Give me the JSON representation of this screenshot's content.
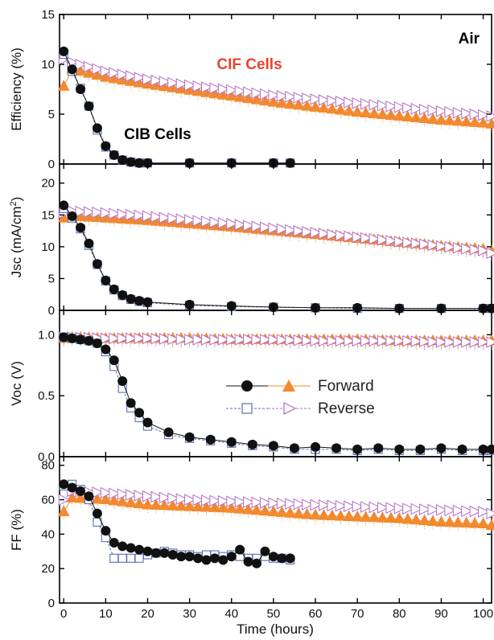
{
  "chart_data": [
    {
      "type": "scatter",
      "id": "eff",
      "ylabel": "Efficiency (%)",
      "ylim": [
        0,
        15
      ],
      "yticks": [
        0,
        5,
        10,
        15
      ],
      "annotations": [
        {
          "text": "Air",
          "color": "#000000"
        },
        {
          "text": "CIF Cells",
          "color": "#e8432e"
        },
        {
          "text": "CIB Cells",
          "color": "#000000"
        }
      ],
      "series": [
        {
          "key": "cib_forward",
          "x": [
            0,
            2,
            4,
            6,
            8,
            10,
            12,
            14,
            16,
            18,
            20,
            30,
            40,
            50,
            54
          ],
          "y": [
            11.3,
            9.5,
            7.5,
            5.8,
            3.6,
            1.8,
            0.9,
            0.4,
            0.2,
            0.1,
            0.1,
            0.1,
            0.1,
            0.1,
            0.1
          ]
        },
        {
          "key": "cib_reverse",
          "x": [
            0,
            2,
            4,
            6,
            8,
            10,
            12,
            14,
            16,
            18,
            20,
            30,
            40,
            50,
            54
          ],
          "y": [
            11.0,
            9.3,
            7.6,
            5.8,
            3.4,
            1.7,
            0.9,
            0.4,
            0.2,
            0.1,
            0.1,
            0.1,
            0.1,
            0.1,
            0.1
          ]
        },
        {
          "key": "cif_forward",
          "x": [
            0,
            2,
            10,
            20,
            30,
            40,
            50,
            60,
            70,
            80,
            90,
            100,
            102
          ],
          "y": [
            7.8,
            9.5,
            8.7,
            8.0,
            7.4,
            6.8,
            6.2,
            5.7,
            5.2,
            4.8,
            4.4,
            4.1,
            4.0
          ]
        },
        {
          "key": "cif_reverse",
          "x": [
            0,
            2,
            10,
            20,
            30,
            40,
            50,
            60,
            70,
            80,
            90,
            100,
            102
          ],
          "y": [
            10.5,
            10.2,
            9.3,
            8.5,
            7.9,
            7.4,
            6.9,
            6.5,
            6.1,
            5.7,
            5.3,
            4.9,
            4.8
          ]
        }
      ]
    },
    {
      "type": "scatter",
      "id": "jsc",
      "ylabel": "Jsc (mA/cm2)",
      "ylim": [
        0,
        23
      ],
      "yticks": [
        0,
        5,
        10,
        15,
        20
      ],
      "series": [
        {
          "key": "cib_forward",
          "x": [
            0,
            2,
            4,
            6,
            8,
            10,
            12,
            14,
            16,
            18,
            20,
            30,
            40,
            50,
            60,
            70,
            80,
            90,
            100,
            102
          ],
          "y": [
            16.5,
            14.8,
            13.0,
            10.5,
            7.3,
            4.7,
            3.3,
            2.4,
            1.8,
            1.5,
            1.3,
            0.9,
            0.7,
            0.5,
            0.4,
            0.4,
            0.3,
            0.3,
            0.3,
            0.3
          ]
        },
        {
          "key": "cib_reverse",
          "x": [
            0,
            2,
            4,
            6,
            8,
            10,
            12,
            14,
            16,
            18,
            20,
            30,
            40,
            50,
            60,
            70,
            80,
            90,
            100,
            102
          ],
          "y": [
            16.0,
            14.5,
            12.8,
            10.2,
            7.2,
            4.6,
            3.2,
            2.3,
            1.7,
            1.4,
            1.2,
            0.8,
            0.6,
            0.5,
            0.4,
            0.3,
            0.3,
            0.3,
            0.3,
            0.3
          ]
        },
        {
          "key": "cif_forward",
          "x": [
            0,
            2,
            10,
            20,
            30,
            40,
            50,
            60,
            70,
            80,
            90,
            100,
            102
          ],
          "y": [
            14.5,
            14.8,
            14.5,
            14.1,
            13.6,
            13.1,
            12.5,
            11.9,
            11.3,
            10.7,
            10.1,
            9.6,
            9.3
          ]
        },
        {
          "key": "cif_reverse",
          "x": [
            0,
            2,
            10,
            20,
            30,
            40,
            50,
            60,
            70,
            80,
            90,
            100,
            102
          ],
          "y": [
            15.3,
            15.6,
            15.3,
            14.8,
            14.2,
            13.6,
            12.9,
            12.2,
            11.5,
            10.8,
            10.1,
            9.4,
            9.0
          ]
        }
      ]
    },
    {
      "type": "scatter",
      "id": "voc",
      "ylabel": "Voc (V)",
      "ylim": [
        0,
        1.2
      ],
      "yticks": [
        0.0,
        0.5,
        1.0
      ],
      "ytick_labels": [
        "0.0",
        "0.5",
        "1.0"
      ],
      "legend": {
        "forward": "Forward",
        "reverse": "Reverse"
      },
      "series": [
        {
          "key": "cib_forward",
          "x": [
            0,
            2,
            4,
            6,
            8,
            10,
            12,
            14,
            16,
            18,
            20,
            25,
            30,
            35,
            40,
            45,
            50,
            55,
            60,
            65,
            70,
            75,
            80,
            85,
            90,
            95,
            100,
            102
          ],
          "y": [
            0.98,
            0.97,
            0.96,
            0.95,
            0.93,
            0.88,
            0.79,
            0.62,
            0.44,
            0.36,
            0.28,
            0.2,
            0.16,
            0.14,
            0.12,
            0.1,
            0.09,
            0.07,
            0.08,
            0.07,
            0.06,
            0.07,
            0.06,
            0.06,
            0.07,
            0.06,
            0.06,
            0.06
          ]
        },
        {
          "key": "cib_reverse",
          "x": [
            0,
            2,
            4,
            6,
            8,
            10,
            12,
            14,
            16,
            18,
            20,
            25,
            30,
            35,
            40,
            45,
            50,
            55,
            60,
            65,
            70,
            75,
            80,
            85,
            90,
            95,
            100,
            102
          ],
          "y": [
            0.98,
            0.97,
            0.96,
            0.95,
            0.93,
            0.86,
            0.74,
            0.56,
            0.4,
            0.32,
            0.25,
            0.18,
            0.15,
            0.13,
            0.11,
            0.09,
            0.08,
            0.06,
            0.06,
            0.06,
            0.05,
            0.06,
            0.05,
            0.05,
            0.06,
            0.05,
            0.05,
            0.05
          ]
        },
        {
          "key": "cif_forward",
          "x": [
            0,
            2,
            10,
            20,
            30,
            40,
            50,
            60,
            70,
            80,
            90,
            100,
            102
          ],
          "y": [
            0.97,
            0.98,
            0.97,
            0.97,
            0.97,
            0.96,
            0.96,
            0.96,
            0.96,
            0.95,
            0.95,
            0.95,
            0.95
          ]
        },
        {
          "key": "cif_reverse",
          "x": [
            0,
            2,
            10,
            20,
            30,
            40,
            50,
            60,
            70,
            80,
            90,
            100,
            102
          ],
          "y": [
            0.98,
            0.98,
            0.97,
            0.97,
            0.96,
            0.96,
            0.96,
            0.95,
            0.95,
            0.95,
            0.94,
            0.94,
            0.94
          ]
        }
      ]
    },
    {
      "type": "scatter",
      "id": "ff",
      "ylabel": "FF (%)",
      "xlabel": "Time (hours)",
      "ylim": [
        0,
        85
      ],
      "yticks": [
        0,
        20,
        40,
        60,
        80
      ],
      "xlim": [
        -1,
        102
      ],
      "xticks": [
        0,
        10,
        20,
        30,
        40,
        50,
        60,
        70,
        80,
        90,
        100
      ],
      "series": [
        {
          "key": "cib_forward",
          "x": [
            0,
            2,
            4,
            6,
            8,
            10,
            12,
            14,
            16,
            18,
            20,
            22,
            24,
            26,
            28,
            30,
            32,
            34,
            36,
            38,
            40,
            42,
            44,
            46,
            48,
            50,
            52,
            54
          ],
          "y": [
            69,
            67,
            65,
            62,
            52,
            42,
            35,
            33,
            32,
            31,
            30,
            29,
            29,
            28,
            27,
            27,
            26,
            25,
            26,
            25,
            27,
            31,
            24,
            23,
            30,
            27,
            26,
            26
          ]
        },
        {
          "key": "cib_reverse",
          "x": [
            0,
            2,
            4,
            6,
            8,
            10,
            12,
            14,
            16,
            18,
            20,
            22,
            24,
            26,
            28,
            30,
            32,
            34,
            36,
            38,
            40,
            42,
            44,
            46,
            48,
            50,
            52,
            54
          ],
          "y": [
            68,
            69,
            66,
            60,
            47,
            38,
            26,
            26,
            26,
            26,
            28,
            29,
            30,
            29,
            28,
            28,
            27,
            28,
            28,
            27,
            28,
            27,
            26,
            26,
            27,
            26,
            26,
            25
          ]
        },
        {
          "key": "cif_forward",
          "x": [
            0,
            2,
            10,
            20,
            30,
            40,
            50,
            60,
            70,
            80,
            90,
            100,
            102
          ],
          "y": [
            53,
            61,
            60,
            57,
            56,
            55,
            53,
            51,
            50,
            49,
            47,
            46,
            45
          ]
        },
        {
          "key": "cif_reverse",
          "x": [
            0,
            2,
            10,
            20,
            30,
            40,
            50,
            60,
            70,
            80,
            90,
            100,
            102
          ],
          "y": [
            60,
            65,
            64,
            62,
            60,
            59,
            58,
            57,
            56,
            55,
            54,
            53,
            52
          ]
        }
      ]
    }
  ],
  "colors": {
    "cib": "#5a6fb5",
    "cib_filled": "#111111",
    "cif_forward": "#f28a2e",
    "cif_reverse": "#b36cc4",
    "cif_label": "#e8432e",
    "axis": "#000000"
  }
}
